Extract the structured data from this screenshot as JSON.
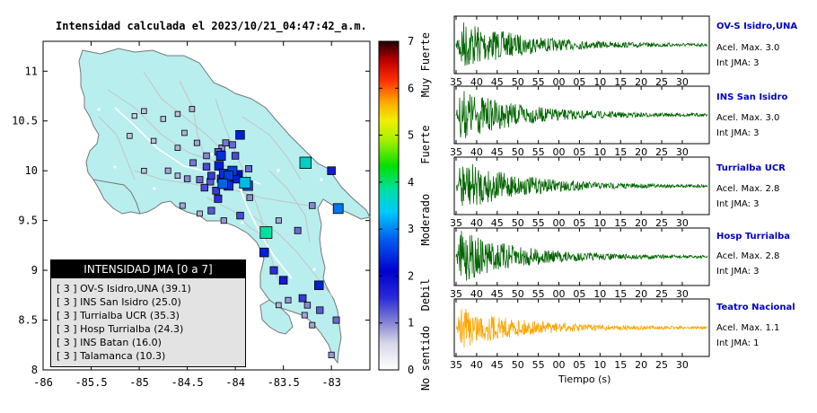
{
  "map": {
    "title": "Intensidad calculada el 2023/10/21_04:47:42_a.m.",
    "legend_title": "INTENSIDAD JMA [0 a 7]",
    "legend_rows": [
      "[ 3 ]  OV-S Isidro,UNA (39.1)",
      "[ 3 ]  INS San Isidro (25.0)",
      "[ 3 ]  Turrialba UCR (35.3)",
      "[ 3 ]  Hosp Turrialba (24.3)",
      "[ 3 ]  INS Batan (16.0)",
      "[ 3 ]  Talamanca (10.3)"
    ],
    "colorbar_labels": [
      "Muy Fuerte",
      "Fuerte",
      "Moderado",
      "Debil",
      "No sentido"
    ]
  },
  "traces": [
    {
      "name": "OV-S Isidro,UNA",
      "acel": "Acel. Max. 3.0",
      "int": "Int JMA: 3",
      "color": "#006400"
    },
    {
      "name": "INS San Isidro",
      "acel": "Acel. Max. 3.0",
      "int": "Int JMA: 3",
      "color": "#006400"
    },
    {
      "name": "Turrialba UCR",
      "acel": "Acel. Max. 2.8",
      "int": "Int JMA: 3",
      "color": "#006400"
    },
    {
      "name": "Hosp Turrialba",
      "acel": "Acel. Max. 2.8",
      "int": "Int JMA: 3",
      "color": "#006400"
    },
    {
      "name": "Teatro Nacional",
      "acel": "Acel. Max. 1.1",
      "int": "Int JMA: 1",
      "color": "#ffa500"
    }
  ],
  "time_axis_label": "Tiempo (s)",
  "chart_data": [
    {
      "type": "scatter",
      "title": "Intensidad calculada el 2023/10/21_04:47:42_a.m.",
      "xlim": [
        -86,
        -82.6
      ],
      "ylim": [
        8,
        11.3
      ],
      "x_ticks": [
        "-86",
        "-85.5",
        "-85",
        "-84.5",
        "-84",
        "-83.5",
        "-83"
      ],
      "y_ticks": [
        "8",
        "8.5",
        "9",
        "9.5",
        "10",
        "10.5",
        "11"
      ],
      "colorbar": {
        "range": [
          0,
          7
        ],
        "ticks": [
          "0",
          "1",
          "2",
          "3",
          "4",
          "5",
          "6",
          "7"
        ],
        "labels": [
          "No sentido",
          "Debil",
          "Moderado",
          "Fuerte",
          "Muy Fuerte"
        ]
      },
      "stations": [
        {
          "lon": -83.95,
          "lat": 10.36,
          "intensity": 2.2
        },
        {
          "lon": -83.27,
          "lat": 10.08,
          "intensity": 3.3
        },
        {
          "lon": -84.15,
          "lat": 10.15,
          "intensity": 2.3
        },
        {
          "lon": -84.03,
          "lat": 10.0,
          "intensity": 2.4
        },
        {
          "lon": -84.07,
          "lat": 9.95,
          "intensity": 2.4
        },
        {
          "lon": -83.9,
          "lat": 9.88,
          "intensity": 3.1
        },
        {
          "lon": -83.87,
          "lat": 9.85,
          "intensity": 2.5
        },
        {
          "lon": -84.17,
          "lat": 10.05,
          "intensity": 2.2
        },
        {
          "lon": -83.97,
          "lat": 9.96,
          "intensity": 2.1
        },
        {
          "lon": -84.13,
          "lat": 9.87,
          "intensity": 2.6
        },
        {
          "lon": -84.12,
          "lat": 9.97,
          "intensity": 2.3
        },
        {
          "lon": -84.0,
          "lat": 9.92,
          "intensity": 2.2
        },
        {
          "lon": -84.15,
          "lat": 9.92,
          "intensity": 1.6
        },
        {
          "lon": -84.25,
          "lat": 9.95,
          "intensity": 1.5
        },
        {
          "lon": -84.3,
          "lat": 10.04,
          "intensity": 1.4
        },
        {
          "lon": -84.44,
          "lat": 10.08,
          "intensity": 1.1
        },
        {
          "lon": -84.26,
          "lat": 9.89,
          "intensity": 1.3
        },
        {
          "lon": -84.32,
          "lat": 9.83,
          "intensity": 1.4
        },
        {
          "lon": -84.37,
          "lat": 9.91,
          "intensity": 1.2
        },
        {
          "lon": -84.2,
          "lat": 9.8,
          "intensity": 1.5
        },
        {
          "lon": -84.18,
          "lat": 9.72,
          "intensity": 1.6
        },
        {
          "lon": -84.07,
          "lat": 9.85,
          "intensity": 2.3
        },
        {
          "lon": -84.1,
          "lat": 10.28,
          "intensity": 1.1
        },
        {
          "lon": -84.14,
          "lat": 10.23,
          "intensity": 1.0
        },
        {
          "lon": -84.18,
          "lat": 10.19,
          "intensity": 1.3
        },
        {
          "lon": -84.03,
          "lat": 10.26,
          "intensity": 1.2
        },
        {
          "lon": -84.0,
          "lat": 10.15,
          "intensity": 1.4
        },
        {
          "lon": -83.86,
          "lat": 10.02,
          "intensity": 1.2
        },
        {
          "lon": -84.4,
          "lat": 10.28,
          "intensity": 0.8
        },
        {
          "lon": -84.53,
          "lat": 10.38,
          "intensity": 0.7
        },
        {
          "lon": -84.75,
          "lat": 10.52,
          "intensity": 0.6
        },
        {
          "lon": -85.05,
          "lat": 10.55,
          "intensity": 0.5
        },
        {
          "lon": -84.6,
          "lat": 10.23,
          "intensity": 0.7
        },
        {
          "lon": -84.85,
          "lat": 10.3,
          "intensity": 0.6
        },
        {
          "lon": -84.7,
          "lat": 10.0,
          "intensity": 0.8
        },
        {
          "lon": -84.6,
          "lat": 9.95,
          "intensity": 0.7
        },
        {
          "lon": -84.5,
          "lat": 9.92,
          "intensity": 1.0
        },
        {
          "lon": -84.55,
          "lat": 9.65,
          "intensity": 0.8
        },
        {
          "lon": -84.37,
          "lat": 9.57,
          "intensity": 0.7
        },
        {
          "lon": -84.12,
          "lat": 9.5,
          "intensity": 0.9
        },
        {
          "lon": -84.95,
          "lat": 10.0,
          "intensity": 0.6
        },
        {
          "lon": -85.1,
          "lat": 10.35,
          "intensity": 0.6
        },
        {
          "lon": -84.95,
          "lat": 10.6,
          "intensity": 0.6
        },
        {
          "lon": -84.45,
          "lat": 10.62,
          "intensity": 0.7
        },
        {
          "lon": -84.6,
          "lat": 10.57,
          "intensity": 0.6
        },
        {
          "lon": -83.95,
          "lat": 9.55,
          "intensity": 1.4
        },
        {
          "lon": -83.85,
          "lat": 9.73,
          "intensity": 1.0
        },
        {
          "lon": -83.68,
          "lat": 9.38,
          "intensity": 3.5
        },
        {
          "lon": -83.7,
          "lat": 9.18,
          "intensity": 2.2
        },
        {
          "lon": -83.6,
          "lat": 9.0,
          "intensity": 1.6
        },
        {
          "lon": -83.5,
          "lat": 8.9,
          "intensity": 1.8
        },
        {
          "lon": -83.13,
          "lat": 8.85,
          "intensity": 2.2
        },
        {
          "lon": -83.3,
          "lat": 8.72,
          "intensity": 1.5
        },
        {
          "lon": -83.12,
          "lat": 8.6,
          "intensity": 1.3
        },
        {
          "lon": -83.25,
          "lat": 8.65,
          "intensity": 1.0
        },
        {
          "lon": -83.45,
          "lat": 8.7,
          "intensity": 0.9
        },
        {
          "lon": -83.28,
          "lat": 8.55,
          "intensity": 0.8
        },
        {
          "lon": -83.55,
          "lat": 8.65,
          "intensity": 0.7
        },
        {
          "lon": -83.2,
          "lat": 8.45,
          "intensity": 0.8
        },
        {
          "lon": -82.95,
          "lat": 8.5,
          "intensity": 1.2
        },
        {
          "lon": -83.0,
          "lat": 8.15,
          "intensity": 0.9
        },
        {
          "lon": -82.93,
          "lat": 9.62,
          "intensity": 2.7
        },
        {
          "lon": -83.0,
          "lat": 10.0,
          "intensity": 1.8
        },
        {
          "lon": -83.2,
          "lat": 9.65,
          "intensity": 1.0
        },
        {
          "lon": -83.35,
          "lat": 9.4,
          "intensity": 1.2
        },
        {
          "lon": -83.55,
          "lat": 9.5,
          "intensity": 0.8
        },
        {
          "lon": -84.25,
          "lat": 9.6,
          "intensity": 1.3
        },
        {
          "lon": -84.3,
          "lat": 10.15,
          "intensity": 1.0
        }
      ]
    },
    {
      "type": "line",
      "xlabel": "Tiempo (s)",
      "x_tick_labels": [
        "35",
        "40",
        "45",
        "50",
        "55",
        "00",
        "05",
        "10",
        "15",
        "20",
        "25",
        "30"
      ],
      "series": [
        {
          "name": "OV-S Isidro,UNA",
          "peak_accel": 3.0,
          "jma_intensity": 3,
          "onset_label": "35"
        },
        {
          "name": "INS San Isidro",
          "peak_accel": 3.0,
          "jma_intensity": 3,
          "onset_label": "35"
        },
        {
          "name": "Turrialba UCR",
          "peak_accel": 2.8,
          "jma_intensity": 3,
          "onset_label": "35"
        },
        {
          "name": "Hosp Turrialba",
          "peak_accel": 2.8,
          "jma_intensity": 3,
          "onset_label": "35"
        },
        {
          "name": "Teatro Nacional",
          "peak_accel": 1.1,
          "jma_intensity": 1,
          "onset_label": "35"
        }
      ]
    }
  ]
}
